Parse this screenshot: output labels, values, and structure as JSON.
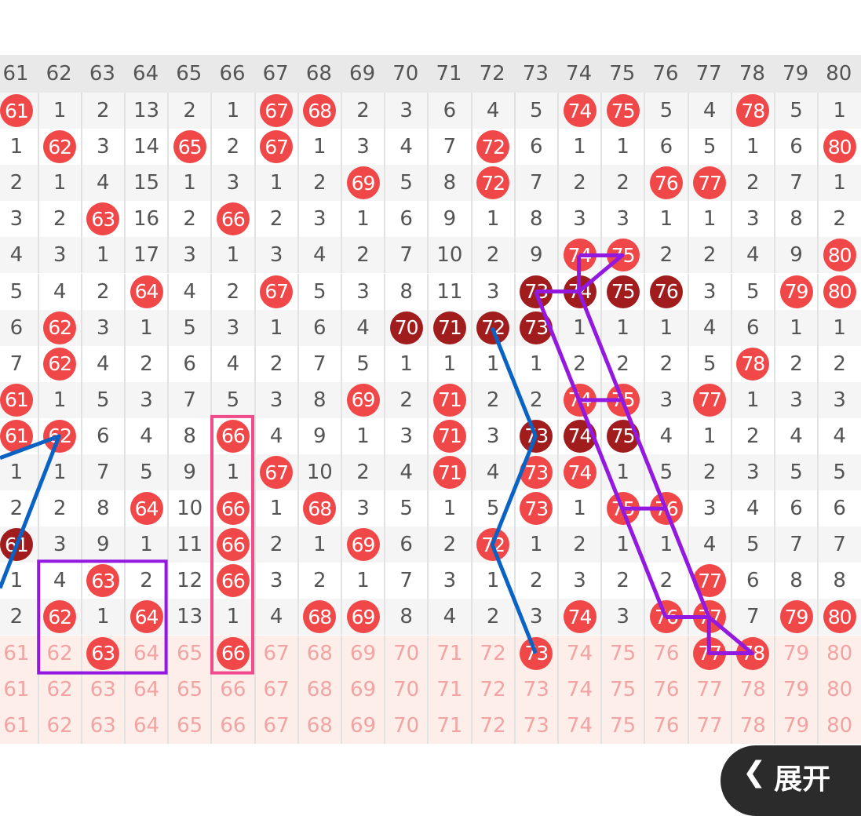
{
  "columns": [
    "61",
    "62",
    "63",
    "64",
    "65",
    "66",
    "67",
    "68",
    "69",
    "70",
    "71",
    "72",
    "73",
    "74",
    "75",
    "76",
    "77",
    "78",
    "79",
    "80"
  ],
  "colors": {
    "hit_ball": "#f04848",
    "repeat_ball": "#a11d1d",
    "blue_line": "#0a62c4",
    "purple_line": "#9318e0",
    "pink_box": "#f04c8c"
  },
  "rows": [
    [
      "h:61",
      "1",
      "2",
      "13",
      "2",
      "1",
      "h:67",
      "h:68",
      "2",
      "3",
      "6",
      "4",
      "5",
      "h:74",
      "h:75",
      "5",
      "4",
      "h:78",
      "5",
      "1"
    ],
    [
      "1",
      "h:62",
      "3",
      "14",
      "h:65",
      "2",
      "h:67",
      "1",
      "3",
      "4",
      "7",
      "h:72",
      "6",
      "1",
      "1",
      "6",
      "5",
      "1",
      "6",
      "h:80"
    ],
    [
      "2",
      "1",
      "4",
      "15",
      "1",
      "3",
      "1",
      "2",
      "h:69",
      "5",
      "8",
      "h:72",
      "7",
      "2",
      "2",
      "h:76",
      "h:77",
      "2",
      "7",
      "1"
    ],
    [
      "3",
      "2",
      "h:63",
      "16",
      "2",
      "h:66",
      "2",
      "3",
      "1",
      "6",
      "9",
      "1",
      "8",
      "3",
      "3",
      "1",
      "1",
      "3",
      "8",
      "2"
    ],
    [
      "4",
      "3",
      "1",
      "17",
      "3",
      "1",
      "3",
      "4",
      "2",
      "7",
      "10",
      "2",
      "9",
      "h:74",
      "h:75",
      "2",
      "2",
      "4",
      "9",
      "h:80"
    ],
    [
      "5",
      "4",
      "2",
      "h:64",
      "4",
      "2",
      "h:67",
      "5",
      "3",
      "8",
      "11",
      "3",
      "d:73",
      "d:74",
      "d:75",
      "d:76",
      "3",
      "5",
      "h:79",
      "h:80"
    ],
    [
      "6",
      "h:62",
      "3",
      "1",
      "5",
      "3",
      "1",
      "6",
      "4",
      "d:70",
      "d:71",
      "d:72",
      "d:73",
      "1",
      "1",
      "1",
      "4",
      "6",
      "1",
      "1"
    ],
    [
      "7",
      "h:62",
      "4",
      "2",
      "6",
      "4",
      "2",
      "7",
      "5",
      "1",
      "1",
      "1",
      "1",
      "2",
      "2",
      "2",
      "5",
      "h:78",
      "2",
      "2"
    ],
    [
      "h:61",
      "1",
      "5",
      "3",
      "7",
      "5",
      "3",
      "8",
      "h:69",
      "2",
      "h:71",
      "2",
      "2",
      "h:74",
      "h:75",
      "3",
      "h:77",
      "1",
      "3",
      "3"
    ],
    [
      "h:61",
      "h:62",
      "6",
      "4",
      "8",
      "h:66",
      "4",
      "9",
      "1",
      "3",
      "h:71",
      "3",
      "d:73",
      "d:74",
      "d:75",
      "4",
      "1",
      "2",
      "4",
      "4"
    ],
    [
      "1",
      "1",
      "7",
      "5",
      "9",
      "1",
      "h:67",
      "10",
      "2",
      "4",
      "h:71",
      "4",
      "h:73",
      "h:74",
      "1",
      "5",
      "2",
      "3",
      "5",
      "5"
    ],
    [
      "2",
      "2",
      "8",
      "h:64",
      "10",
      "h:66",
      "1",
      "h:68",
      "3",
      "5",
      "1",
      "5",
      "h:73",
      "1",
      "h:75",
      "h:76",
      "3",
      "4",
      "6",
      "6"
    ],
    [
      "d:61",
      "3",
      "9",
      "1",
      "11",
      "h:66",
      "2",
      "1",
      "h:69",
      "6",
      "2",
      "h:72",
      "1",
      "2",
      "1",
      "1",
      "4",
      "5",
      "7",
      "7"
    ],
    [
      "1",
      "4",
      "h:63",
      "2",
      "12",
      "h:66",
      "3",
      "2",
      "1",
      "7",
      "3",
      "1",
      "2",
      "3",
      "2",
      "2",
      "h:77",
      "6",
      "8",
      "8"
    ],
    [
      "2",
      "h:62",
      "1",
      "h:64",
      "13",
      "1",
      "4",
      "h:68",
      "h:69",
      "8",
      "4",
      "2",
      "3",
      "h:74",
      "3",
      "h:76",
      "h:77",
      "7",
      "h:79",
      "h:80"
    ]
  ],
  "predict_rows": [
    [
      "61",
      "62",
      "h:63",
      "64",
      "65",
      "h:66",
      "67",
      "68",
      "69",
      "70",
      "71",
      "72",
      "h:73",
      "74",
      "75",
      "76",
      "h:77",
      "h:78",
      "79",
      "80"
    ],
    [
      "61",
      "62",
      "63",
      "64",
      "65",
      "66",
      "67",
      "68",
      "69",
      "70",
      "71",
      "72",
      "73",
      "74",
      "75",
      "76",
      "77",
      "78",
      "79",
      "80"
    ],
    [
      "61",
      "62",
      "63",
      "64",
      "65",
      "66",
      "67",
      "68",
      "69",
      "70",
      "71",
      "72",
      "73",
      "74",
      "75",
      "76",
      "77",
      "78",
      "79",
      "80"
    ]
  ],
  "expand_button": {
    "label": "展开",
    "icon": "chevron-left-icon"
  }
}
